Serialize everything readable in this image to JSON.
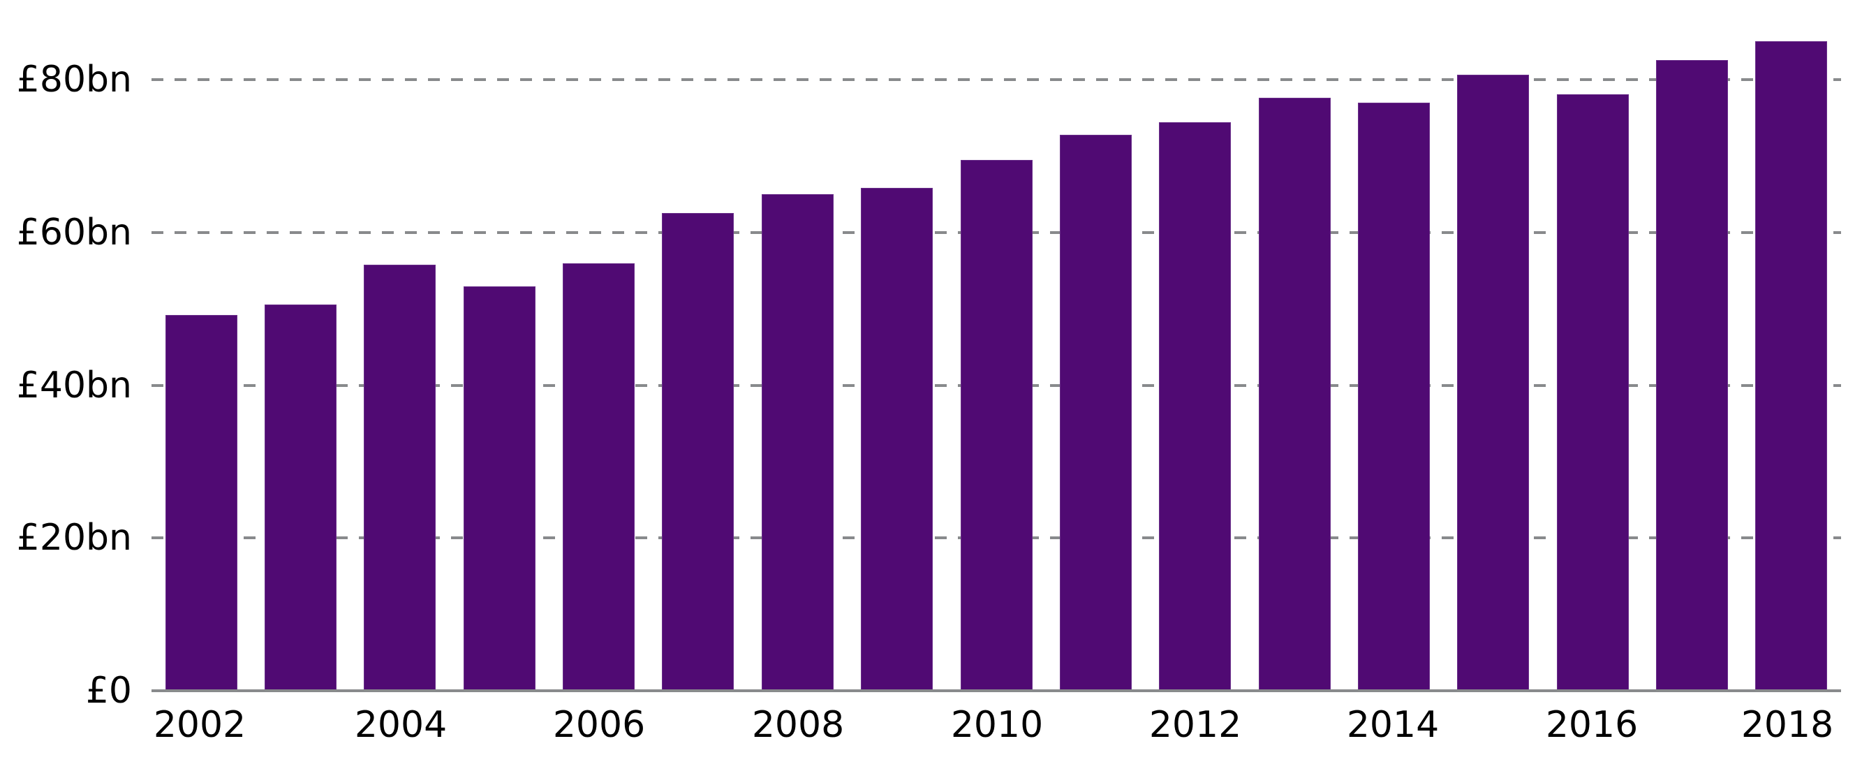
{
  "chart_data": {
    "type": "bar",
    "title": "",
    "xlabel": "",
    "ylabel": "",
    "categories": [
      "2002",
      "2003",
      "2004",
      "2005",
      "2006",
      "2007",
      "2008",
      "2009",
      "2010",
      "2011",
      "2012",
      "2013",
      "2014",
      "2015",
      "2016",
      "2017",
      "2018"
    ],
    "values": [
      49.2,
      50.6,
      55.8,
      52.9,
      56.0,
      62.5,
      65.0,
      65.8,
      69.5,
      72.8,
      74.4,
      77.6,
      77.0,
      80.6,
      78.1,
      82.6,
      85.0
    ],
    "unit": "£bn",
    "ylim": [
      0,
      85
    ],
    "y_ticks": [
      0,
      20,
      40,
      60,
      80
    ],
    "y_tick_labels": [
      "£0",
      "£20bn",
      "£40bn",
      "£60bn",
      "£80bn"
    ],
    "x_tick_labels_shown": [
      "2002",
      "2004",
      "2006",
      "2008",
      "2010",
      "2012",
      "2014",
      "2016",
      "2018"
    ],
    "grid": {
      "y": true,
      "style": "dashed"
    },
    "legend": null,
    "colors": {
      "bar": "#500a73",
      "gridline": "#888a8c",
      "axis": "#888a8c",
      "text": "#000000"
    }
  },
  "axis": {
    "y_labels": {
      "t0": "£0",
      "t20": "£20bn",
      "t40": "£40bn",
      "t60": "£60bn",
      "t80": "£80bn"
    },
    "x_labels": {
      "l2002": "2002",
      "l2004": "2004",
      "l2006": "2006",
      "l2008": "2008",
      "l2010": "2010",
      "l2012": "2012",
      "l2014": "2014",
      "l2016": "2016",
      "l2018": "2018"
    }
  }
}
